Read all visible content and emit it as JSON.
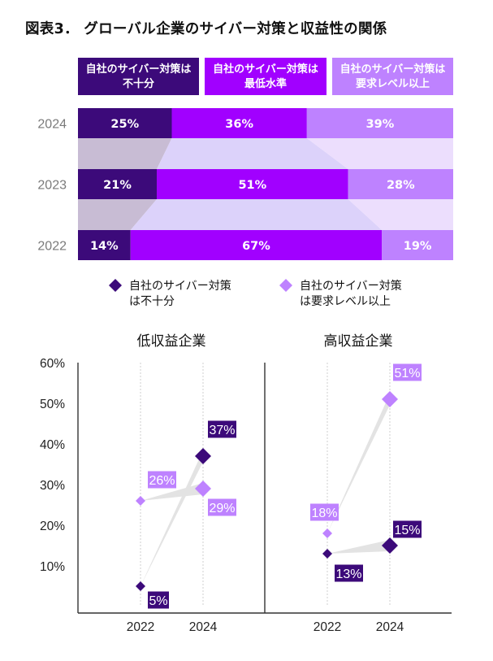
{
  "title": "図表3． グローバル企業のサイバー対策と収益性の関係",
  "colors": {
    "dark": "#3c0a7a",
    "mid": "#a100ff",
    "light": "#be82ff",
    "band_dark": "#c8bcd4",
    "band_mid": "#dcd2fa",
    "band_light": "#ecdefd",
    "connector": "#e3e3e3"
  },
  "chart_data": [
    {
      "type": "bar",
      "orientation": "horizontal-stacked-100",
      "legend_headers": [
        [
          "自社のサイバー対策は",
          "不十分"
        ],
        [
          "自社のサイバー対策は",
          "最低水準"
        ],
        [
          "自社のサイバー対策は",
          "要求レベル以上"
        ]
      ],
      "categories": [
        "2024",
        "2023",
        "2022"
      ],
      "series": [
        {
          "name": "自社のサイバー対策は不十分",
          "values": [
            25,
            21,
            14
          ],
          "labels": [
            "25%",
            "21%",
            "14%"
          ]
        },
        {
          "name": "自社のサイバー対策は最低水準",
          "values": [
            36,
            51,
            67
          ],
          "labels": [
            "36%",
            "51%",
            "67%"
          ]
        },
        {
          "name": "自社のサイバー対策は要求レベル以上",
          "values": [
            39,
            28,
            19
          ],
          "labels": [
            "39%",
            "28%",
            "19%"
          ]
        }
      ]
    },
    {
      "type": "scatter",
      "legend": [
        [
          "自社のサイバー対策",
          "は不十分"
        ],
        [
          "自社のサイバー対策",
          "は要求レベル以上"
        ]
      ],
      "ylim": [
        0,
        60
      ],
      "yticks": [
        10,
        20,
        30,
        40,
        50,
        60
      ],
      "ytick_labels": [
        "10%",
        "20%",
        "30%",
        "40%",
        "50%",
        "60%"
      ],
      "x": [
        "2022",
        "2024"
      ],
      "panels": [
        {
          "title": "低収益企業",
          "series": [
            {
              "name": "自社のサイバー対策は不十分",
              "values": [
                5,
                37
              ],
              "labels": [
                "5%",
                "37%"
              ]
            },
            {
              "name": "自社のサイバー対策は要求レベル以上",
              "values": [
                26,
                29
              ],
              "labels": [
                "26%",
                "29%"
              ]
            }
          ]
        },
        {
          "title": "高収益企業",
          "series": [
            {
              "name": "自社のサイバー対策は不十分",
              "values": [
                13,
                15
              ],
              "labels": [
                "13%",
                "15%"
              ]
            },
            {
              "name": "自社のサイバー対策は要求レベル以上",
              "values": [
                18,
                51
              ],
              "labels": [
                "18%",
                "51%"
              ]
            }
          ]
        }
      ]
    }
  ]
}
